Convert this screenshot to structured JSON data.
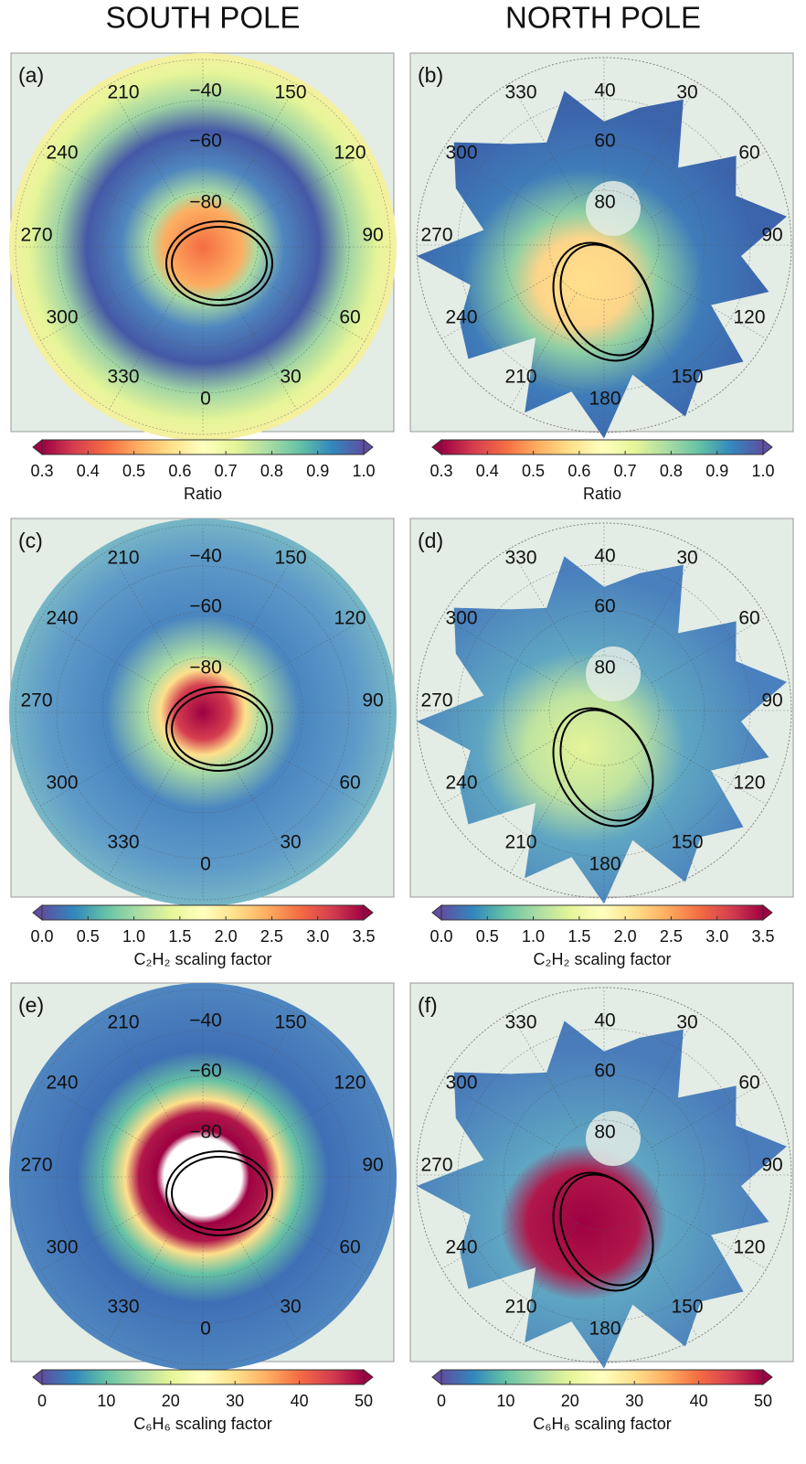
{
  "headers": [
    "SOUTH POLE",
    "NORTH POLE"
  ],
  "panels": [
    {
      "label": "(a)",
      "lon_labels": [
        "210",
        "150",
        "240",
        "120",
        "270",
        "90",
        "300",
        "60",
        "330",
        "0",
        "30"
      ],
      "lat_labels": [
        "−40",
        "−60",
        "−80"
      ],
      "colorbar": {
        "ticks": [
          "0.3",
          "0.4",
          "0.5",
          "0.6",
          "0.7",
          "0.8",
          "0.9",
          "1.0"
        ],
        "label": "Ratio"
      }
    },
    {
      "label": "(b)",
      "lon_labels": [
        "330",
        "30",
        "300",
        "60",
        "270",
        "90",
        "240",
        "120",
        "210",
        "180",
        "150"
      ],
      "lat_labels": [
        "40",
        "60",
        "80"
      ],
      "colorbar": {
        "ticks": [
          "0.3",
          "0.4",
          "0.5",
          "0.6",
          "0.7",
          "0.8",
          "0.9",
          "1.0"
        ],
        "label": "Ratio"
      }
    },
    {
      "label": "(c)",
      "lon_labels": [
        "210",
        "150",
        "240",
        "120",
        "270",
        "90",
        "300",
        "60",
        "330",
        "0",
        "30"
      ],
      "lat_labels": [
        "−40",
        "−60",
        "−80"
      ],
      "colorbar": {
        "ticks": [
          "0.0",
          "0.5",
          "1.0",
          "1.5",
          "2.0",
          "2.5",
          "3.0",
          "3.5"
        ],
        "label": "C₂H₂ scaling factor"
      }
    },
    {
      "label": "(d)",
      "lon_labels": [
        "330",
        "30",
        "300",
        "60",
        "270",
        "90",
        "240",
        "120",
        "210",
        "180",
        "150"
      ],
      "lat_labels": [
        "40",
        "60",
        "80"
      ],
      "colorbar": {
        "ticks": [
          "0.0",
          "0.5",
          "1.0",
          "1.5",
          "2.0",
          "2.5",
          "3.0",
          "3.5"
        ],
        "label": "C₂H₂ scaling factor"
      }
    },
    {
      "label": "(e)",
      "lon_labels": [
        "210",
        "150",
        "240",
        "120",
        "270",
        "90",
        "300",
        "60",
        "330",
        "0",
        "30"
      ],
      "lat_labels": [
        "−40",
        "−60",
        "−80"
      ],
      "colorbar": {
        "ticks": [
          "0",
          "10",
          "20",
          "30",
          "40",
          "50"
        ],
        "label": "C₆H₆ scaling factor"
      }
    },
    {
      "label": "(f)",
      "lon_labels": [
        "330",
        "30",
        "300",
        "60",
        "270",
        "90",
        "240",
        "120",
        "210",
        "180",
        "150"
      ],
      "lat_labels": [
        "40",
        "60",
        "80"
      ],
      "colorbar": {
        "ticks": [
          "0",
          "10",
          "20",
          "30",
          "40",
          "50"
        ],
        "label": "C₆H₆ scaling factor"
      }
    }
  ]
}
